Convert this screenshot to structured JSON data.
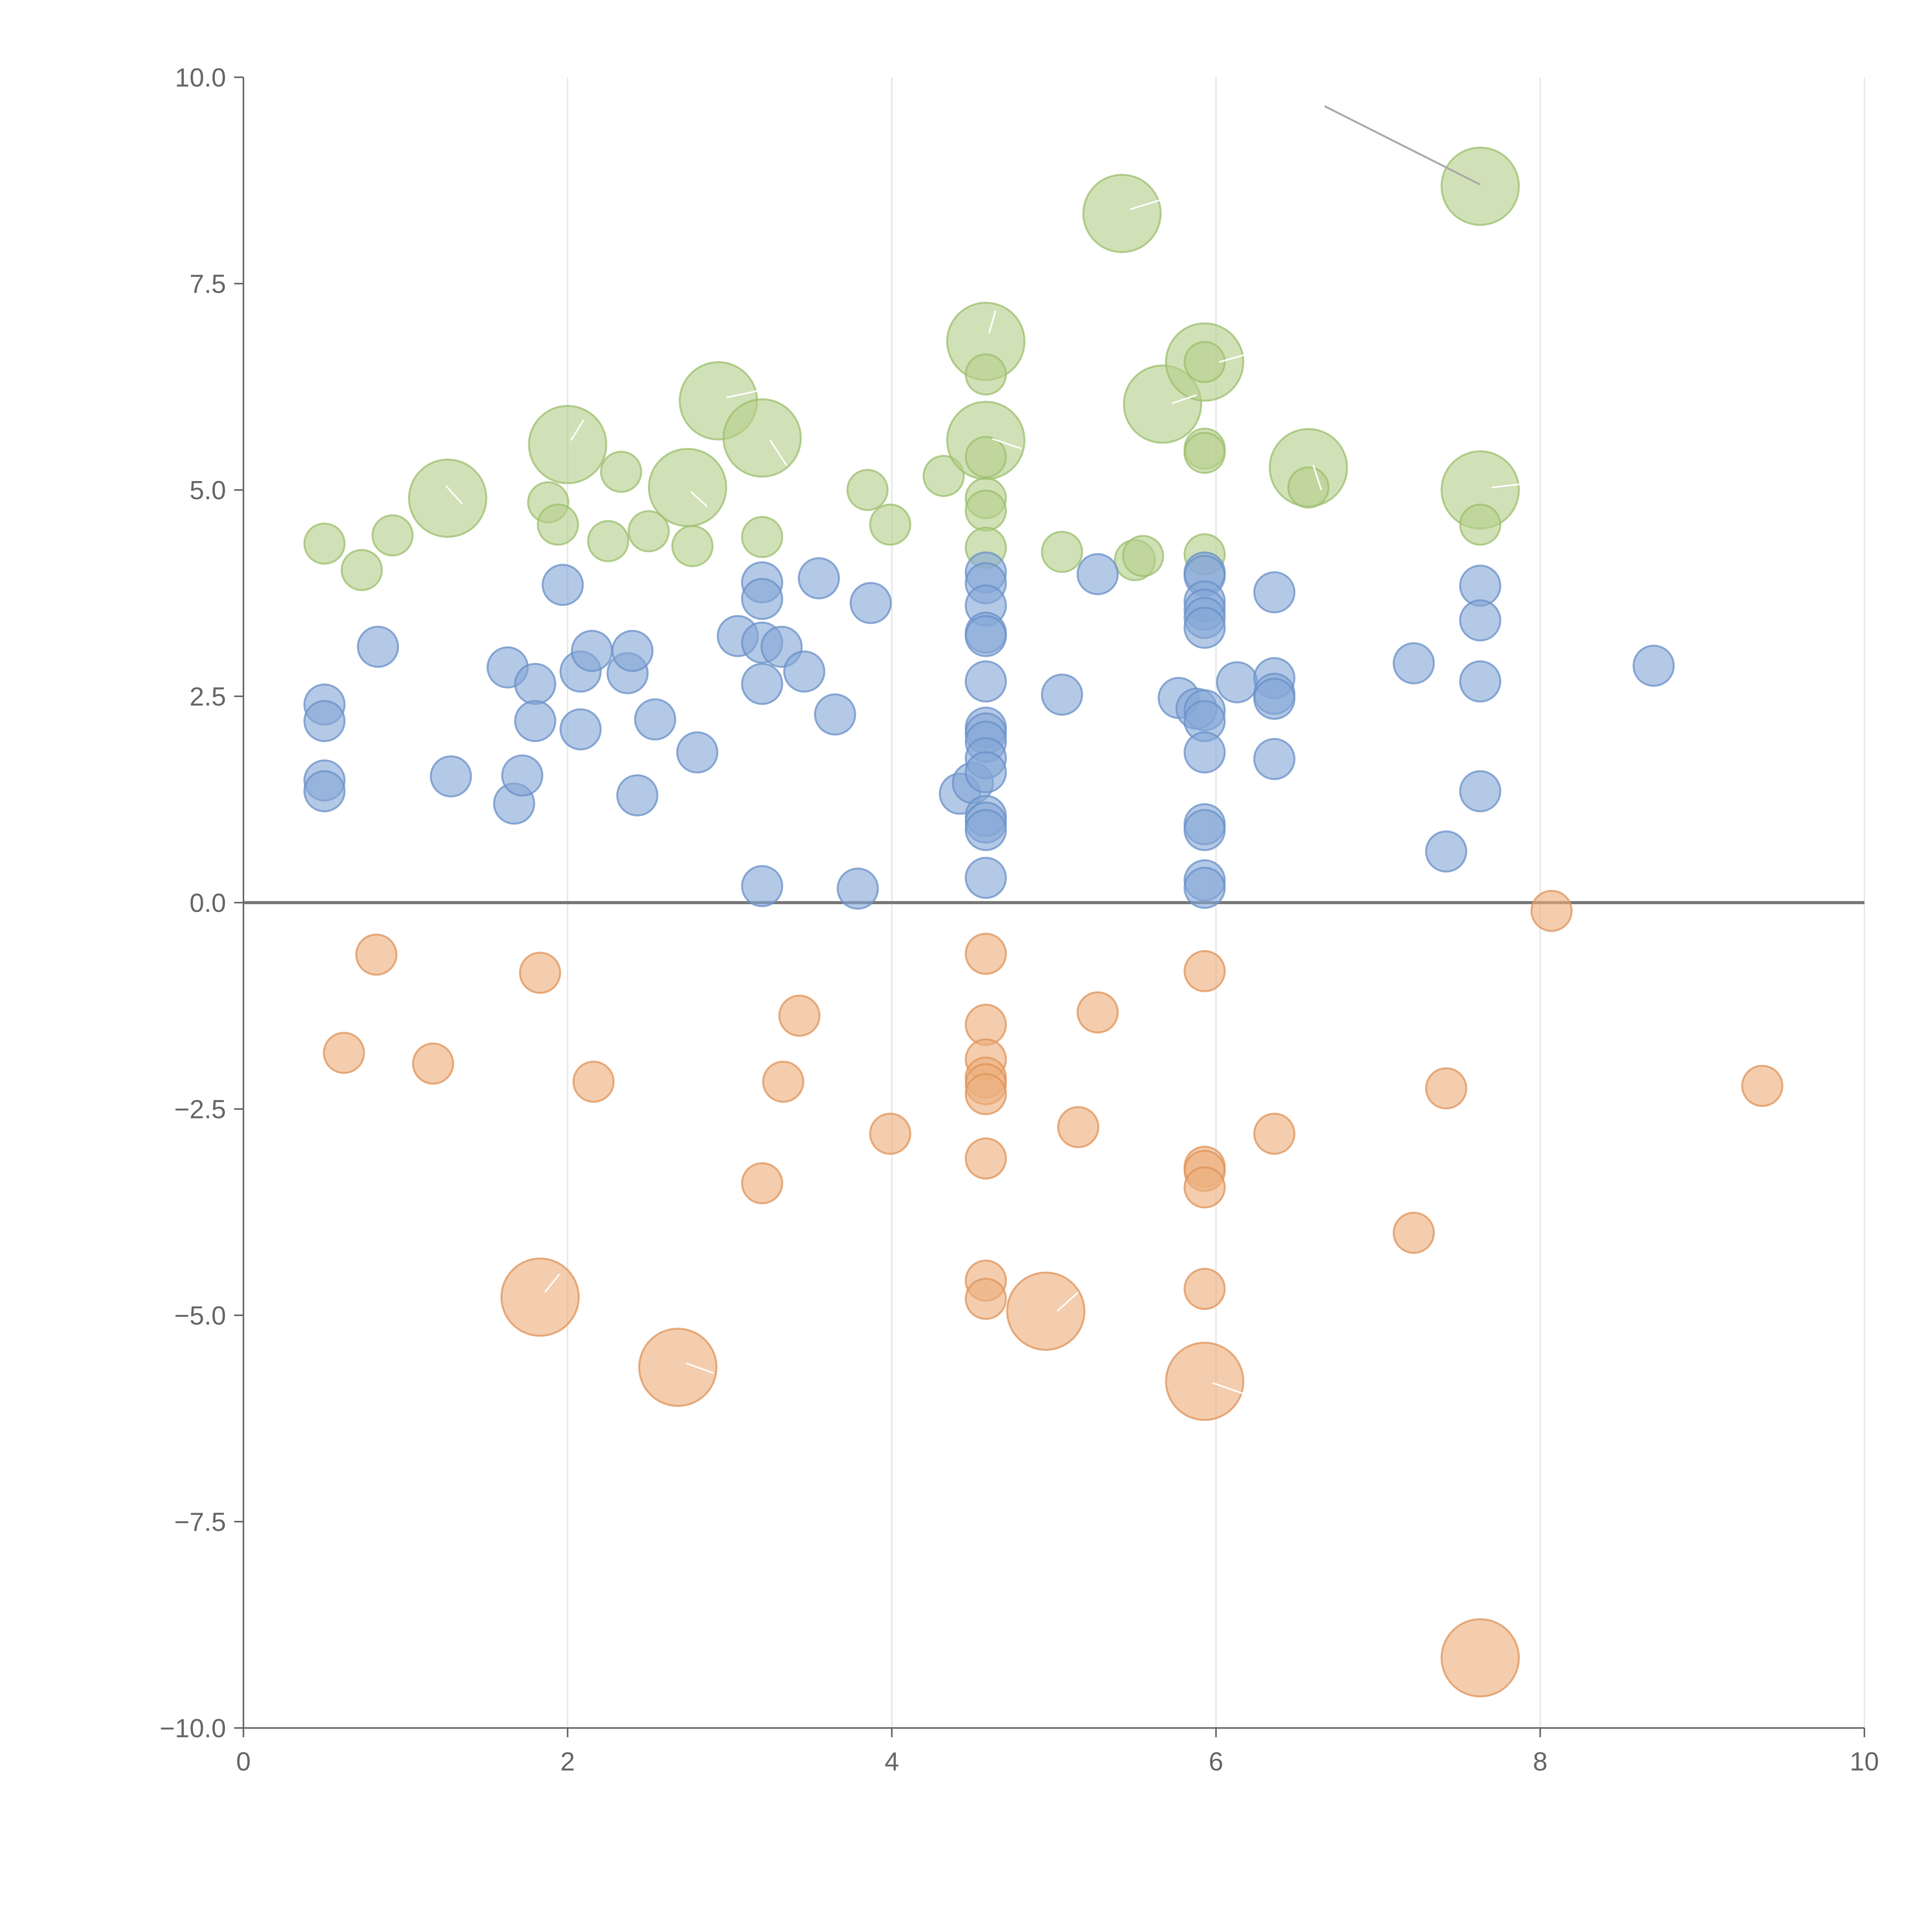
{
  "chart_data": {
    "type": "scatter",
    "subtype": "bubble",
    "title": "",
    "xlabel": "",
    "ylabel": "",
    "xlim": [
      0,
      10
    ],
    "ylim": [
      -10,
      10
    ],
    "x_ticks": [
      0,
      2,
      4,
      6,
      8,
      10
    ],
    "y_ticks": [
      -10,
      -7.5,
      -5,
      -2.5,
      0,
      2.5,
      5,
      7.5,
      10
    ],
    "x_tick_labels": [
      "0",
      "2",
      "4",
      "6",
      "8",
      "10"
    ],
    "y_tick_labels": [
      "−10.0",
      "−7.5",
      "−5.0",
      "−2.5",
      "0.0",
      "2.5",
      "5.0",
      "7.5",
      "10.0"
    ],
    "grid": "vertical only",
    "legend": "none",
    "reference_line": {
      "axis": "y",
      "value": 0
    },
    "colors": {
      "green": "#b5cf8a",
      "blue": "#86a8d6",
      "orange": "#ebae7d",
      "green_stroke": "#9cbf6e",
      "blue_stroke": "#6a90c8",
      "orange_stroke": "#e09358"
    },
    "series": [
      {
        "name": "green",
        "color": "#b5cf8a",
        "points": [
          {
            "x": 0.5,
            "y": 4.35,
            "size": 1
          },
          {
            "x": 0.73,
            "y": 4.03,
            "size": 1
          },
          {
            "x": 0.92,
            "y": 4.45,
            "size": 1
          },
          {
            "x": 1.26,
            "y": 4.9,
            "size": 3
          },
          {
            "x": 1.88,
            "y": 4.85,
            "size": 1
          },
          {
            "x": 1.94,
            "y": 4.58,
            "size": 1
          },
          {
            "x": 2.0,
            "y": 5.55,
            "size": 3
          },
          {
            "x": 2.25,
            "y": 4.38,
            "size": 1
          },
          {
            "x": 2.33,
            "y": 5.22,
            "size": 1
          },
          {
            "x": 2.5,
            "y": 4.5,
            "size": 1
          },
          {
            "x": 2.74,
            "y": 5.03,
            "size": 3
          },
          {
            "x": 2.77,
            "y": 4.32,
            "size": 1
          },
          {
            "x": 2.93,
            "y": 6.08,
            "size": 3
          },
          {
            "x": 3.2,
            "y": 4.43,
            "size": 1
          },
          {
            "x": 3.2,
            "y": 5.63,
            "size": 3
          },
          {
            "x": 3.85,
            "y": 5.0,
            "size": 1
          },
          {
            "x": 3.99,
            "y": 4.58,
            "size": 1
          },
          {
            "x": 4.32,
            "y": 5.17,
            "size": 1
          },
          {
            "x": 4.58,
            "y": 6.8,
            "size": 3
          },
          {
            "x": 4.58,
            "y": 6.4,
            "size": 1
          },
          {
            "x": 4.58,
            "y": 5.6,
            "size": 3
          },
          {
            "x": 4.58,
            "y": 5.4,
            "size": 1
          },
          {
            "x": 4.58,
            "y": 4.9,
            "size": 1
          },
          {
            "x": 4.58,
            "y": 4.75,
            "size": 1
          },
          {
            "x": 4.58,
            "y": 4.3,
            "size": 1
          },
          {
            "x": 5.05,
            "y": 4.25,
            "size": 1
          },
          {
            "x": 5.42,
            "y": 8.35,
            "size": 3
          },
          {
            "x": 5.5,
            "y": 4.15,
            "size": 1
          },
          {
            "x": 5.55,
            "y": 4.2,
            "size": 1
          },
          {
            "x": 5.67,
            "y": 6.04,
            "size": 3
          },
          {
            "x": 5.93,
            "y": 6.55,
            "size": 3
          },
          {
            "x": 5.93,
            "y": 6.55,
            "size": 1
          },
          {
            "x": 5.93,
            "y": 5.5,
            "size": 1
          },
          {
            "x": 5.93,
            "y": 5.45,
            "size": 1
          },
          {
            "x": 5.93,
            "y": 4.22,
            "size": 1
          },
          {
            "x": 6.57,
            "y": 5.27,
            "size": 3
          },
          {
            "x": 6.57,
            "y": 5.03,
            "size": 1
          },
          {
            "x": 7.63,
            "y": 8.68,
            "size": 3
          },
          {
            "x": 7.63,
            "y": 5.0,
            "size": 3
          },
          {
            "x": 7.63,
            "y": 4.58,
            "size": 1
          }
        ]
      },
      {
        "name": "blue",
        "color": "#86a8d6",
        "points": [
          {
            "x": 0.5,
            "y": 2.4,
            "size": 1
          },
          {
            "x": 0.5,
            "y": 2.2,
            "size": 1
          },
          {
            "x": 0.5,
            "y": 1.48,
            "size": 1
          },
          {
            "x": 0.5,
            "y": 1.35,
            "size": 1
          },
          {
            "x": 0.83,
            "y": 3.1,
            "size": 1
          },
          {
            "x": 1.28,
            "y": 1.53,
            "size": 1
          },
          {
            "x": 1.63,
            "y": 2.85,
            "size": 1
          },
          {
            "x": 1.67,
            "y": 1.2,
            "size": 1
          },
          {
            "x": 1.72,
            "y": 1.54,
            "size": 1
          },
          {
            "x": 1.8,
            "y": 2.65,
            "size": 1
          },
          {
            "x": 1.8,
            "y": 2.2,
            "size": 1
          },
          {
            "x": 1.97,
            "y": 3.85,
            "size": 1
          },
          {
            "x": 2.08,
            "y": 2.8,
            "size": 1
          },
          {
            "x": 2.08,
            "y": 2.1,
            "size": 1
          },
          {
            "x": 2.15,
            "y": 3.05,
            "size": 1
          },
          {
            "x": 2.37,
            "y": 2.78,
            "size": 1
          },
          {
            "x": 2.4,
            "y": 3.05,
            "size": 1
          },
          {
            "x": 2.43,
            "y": 1.3,
            "size": 1
          },
          {
            "x": 2.54,
            "y": 2.22,
            "size": 1
          },
          {
            "x": 2.8,
            "y": 1.82,
            "size": 1
          },
          {
            "x": 3.05,
            "y": 3.23,
            "size": 1
          },
          {
            "x": 3.2,
            "y": 3.88,
            "size": 1
          },
          {
            "x": 3.2,
            "y": 3.68,
            "size": 1
          },
          {
            "x": 3.2,
            "y": 3.15,
            "size": 1
          },
          {
            "x": 3.2,
            "y": 2.65,
            "size": 1
          },
          {
            "x": 3.2,
            "y": 0.2,
            "size": 1
          },
          {
            "x": 3.32,
            "y": 3.1,
            "size": 1
          },
          {
            "x": 3.46,
            "y": 2.8,
            "size": 1
          },
          {
            "x": 3.55,
            "y": 3.93,
            "size": 1
          },
          {
            "x": 3.65,
            "y": 2.28,
            "size": 1
          },
          {
            "x": 3.79,
            "y": 0.17,
            "size": 1
          },
          {
            "x": 3.87,
            "y": 3.63,
            "size": 1
          },
          {
            "x": 4.42,
            "y": 1.32,
            "size": 1
          },
          {
            "x": 4.5,
            "y": 1.45,
            "size": 1
          },
          {
            "x": 4.58,
            "y": 4.0,
            "size": 1
          },
          {
            "x": 4.58,
            "y": 3.87,
            "size": 1
          },
          {
            "x": 4.58,
            "y": 3.6,
            "size": 1
          },
          {
            "x": 4.58,
            "y": 3.27,
            "size": 1
          },
          {
            "x": 4.58,
            "y": 3.23,
            "size": 1
          },
          {
            "x": 4.58,
            "y": 2.68,
            "size": 1
          },
          {
            "x": 4.58,
            "y": 2.12,
            "size": 1
          },
          {
            "x": 4.58,
            "y": 2.05,
            "size": 1
          },
          {
            "x": 4.58,
            "y": 1.95,
            "size": 1
          },
          {
            "x": 4.58,
            "y": 1.75,
            "size": 1
          },
          {
            "x": 4.58,
            "y": 1.58,
            "size": 1
          },
          {
            "x": 4.58,
            "y": 1.05,
            "size": 1
          },
          {
            "x": 4.58,
            "y": 0.97,
            "size": 1
          },
          {
            "x": 4.58,
            "y": 0.88,
            "size": 1
          },
          {
            "x": 4.58,
            "y": 0.3,
            "size": 1
          },
          {
            "x": 5.05,
            "y": 2.52,
            "size": 1
          },
          {
            "x": 5.27,
            "y": 3.98,
            "size": 1
          },
          {
            "x": 5.77,
            "y": 2.48,
            "size": 1
          },
          {
            "x": 5.88,
            "y": 2.35,
            "size": 1
          },
          {
            "x": 5.93,
            "y": 4.0,
            "size": 1
          },
          {
            "x": 5.93,
            "y": 3.96,
            "size": 1
          },
          {
            "x": 5.93,
            "y": 3.65,
            "size": 1
          },
          {
            "x": 5.93,
            "y": 3.55,
            "size": 1
          },
          {
            "x": 5.93,
            "y": 3.45,
            "size": 1
          },
          {
            "x": 5.93,
            "y": 3.33,
            "size": 1
          },
          {
            "x": 5.93,
            "y": 2.33,
            "size": 1
          },
          {
            "x": 5.93,
            "y": 2.2,
            "size": 1
          },
          {
            "x": 5.93,
            "y": 1.82,
            "size": 1
          },
          {
            "x": 5.93,
            "y": 0.95,
            "size": 1
          },
          {
            "x": 5.93,
            "y": 0.88,
            "size": 1
          },
          {
            "x": 5.93,
            "y": 0.27,
            "size": 1
          },
          {
            "x": 5.93,
            "y": 0.18,
            "size": 1
          },
          {
            "x": 6.13,
            "y": 2.67,
            "size": 1
          },
          {
            "x": 6.36,
            "y": 3.76,
            "size": 1
          },
          {
            "x": 6.36,
            "y": 2.72,
            "size": 1
          },
          {
            "x": 6.36,
            "y": 2.53,
            "size": 1
          },
          {
            "x": 6.36,
            "y": 2.47,
            "size": 1
          },
          {
            "x": 6.36,
            "y": 1.74,
            "size": 1
          },
          {
            "x": 7.22,
            "y": 2.9,
            "size": 1
          },
          {
            "x": 7.42,
            "y": 0.62,
            "size": 1
          },
          {
            "x": 7.63,
            "y": 3.84,
            "size": 1
          },
          {
            "x": 7.63,
            "y": 3.42,
            "size": 1
          },
          {
            "x": 7.63,
            "y": 2.68,
            "size": 1
          },
          {
            "x": 7.63,
            "y": 1.35,
            "size": 1
          },
          {
            "x": 8.7,
            "y": 2.87,
            "size": 1
          }
        ]
      },
      {
        "name": "orange",
        "color": "#ebae7d",
        "points": [
          {
            "x": 0.62,
            "y": -1.82,
            "size": 1
          },
          {
            "x": 0.82,
            "y": -0.63,
            "size": 1
          },
          {
            "x": 1.17,
            "y": -1.95,
            "size": 1
          },
          {
            "x": 1.83,
            "y": -0.85,
            "size": 1
          },
          {
            "x": 1.83,
            "y": -4.78,
            "size": 3
          },
          {
            "x": 2.16,
            "y": -2.17,
            "size": 1
          },
          {
            "x": 2.68,
            "y": -5.63,
            "size": 3
          },
          {
            "x": 3.2,
            "y": -3.4,
            "size": 1
          },
          {
            "x": 3.33,
            "y": -2.17,
            "size": 1
          },
          {
            "x": 3.43,
            "y": -1.37,
            "size": 1
          },
          {
            "x": 3.99,
            "y": -2.8,
            "size": 1
          },
          {
            "x": 4.58,
            "y": -0.62,
            "size": 1
          },
          {
            "x": 4.58,
            "y": -1.48,
            "size": 1
          },
          {
            "x": 4.58,
            "y": -1.9,
            "size": 1
          },
          {
            "x": 4.58,
            "y": -2.12,
            "size": 1
          },
          {
            "x": 4.58,
            "y": -2.2,
            "size": 1
          },
          {
            "x": 4.58,
            "y": -2.32,
            "size": 1
          },
          {
            "x": 4.58,
            "y": -3.1,
            "size": 1
          },
          {
            "x": 4.58,
            "y": -4.58,
            "size": 1
          },
          {
            "x": 4.58,
            "y": -4.8,
            "size": 1
          },
          {
            "x": 4.95,
            "y": -4.95,
            "size": 3
          },
          {
            "x": 5.15,
            "y": -2.72,
            "size": 1
          },
          {
            "x": 5.27,
            "y": -1.33,
            "size": 1
          },
          {
            "x": 5.93,
            "y": -0.83,
            "size": 1
          },
          {
            "x": 5.93,
            "y": -3.2,
            "size": 1
          },
          {
            "x": 5.93,
            "y": -3.25,
            "size": 1
          },
          {
            "x": 5.93,
            "y": -3.45,
            "size": 1
          },
          {
            "x": 5.93,
            "y": -4.68,
            "size": 1
          },
          {
            "x": 5.93,
            "y": -5.8,
            "size": 3
          },
          {
            "x": 6.36,
            "y": -2.8,
            "size": 1
          },
          {
            "x": 7.22,
            "y": -4.0,
            "size": 1
          },
          {
            "x": 7.42,
            "y": -2.25,
            "size": 1
          },
          {
            "x": 7.63,
            "y": -9.15,
            "size": 3
          },
          {
            "x": 8.07,
            "y": -0.1,
            "size": 1
          },
          {
            "x": 9.37,
            "y": -2.22,
            "size": 1
          }
        ]
      }
    ],
    "leader_lines": [
      {
        "from": [
          6.67,
          9.65
        ],
        "to": [
          7.63,
          8.7
        ],
        "color": "#aaaaaa"
      },
      {
        "from": [
          5.47,
          8.4
        ],
        "to": [
          5.67,
          8.52
        ],
        "color": "#ffffff"
      },
      {
        "from": [
          4.6,
          6.9
        ],
        "to": [
          4.64,
          7.17
        ],
        "color": "#ffffff"
      },
      {
        "from": [
          6.02,
          6.55
        ],
        "to": [
          6.2,
          6.65
        ],
        "color": "#ffffff"
      },
      {
        "from": [
          5.73,
          6.05
        ],
        "to": [
          5.88,
          6.15
        ],
        "color": "#ffffff"
      },
      {
        "from": [
          2.98,
          6.12
        ],
        "to": [
          3.17,
          6.2
        ],
        "color": "#ffffff"
      },
      {
        "from": [
          2.02,
          5.6
        ],
        "to": [
          2.1,
          5.85
        ],
        "color": "#ffffff"
      },
      {
        "from": [
          3.25,
          5.6
        ],
        "to": [
          3.35,
          5.3
        ],
        "color": "#ffffff"
      },
      {
        "from": [
          4.62,
          5.62
        ],
        "to": [
          4.8,
          5.5
        ],
        "color": "#ffffff"
      },
      {
        "from": [
          1.25,
          5.05
        ],
        "to": [
          1.35,
          4.83
        ],
        "color": "#ffffff"
      },
      {
        "from": [
          2.76,
          4.98
        ],
        "to": [
          2.86,
          4.8
        ],
        "color": "#ffffff"
      },
      {
        "from": [
          6.6,
          5.3
        ],
        "to": [
          6.65,
          5.0
        ],
        "color": "#ffffff"
      },
      {
        "from": [
          7.7,
          5.03
        ],
        "to": [
          7.88,
          5.07
        ],
        "color": "#ffffff"
      },
      {
        "from": [
          1.86,
          -4.72
        ],
        "to": [
          1.95,
          -4.5
        ],
        "color": "#ffffff"
      },
      {
        "from": [
          2.73,
          -5.58
        ],
        "to": [
          2.9,
          -5.7
        ],
        "color": "#ffffff"
      },
      {
        "from": [
          5.02,
          -4.95
        ],
        "to": [
          5.15,
          -4.72
        ],
        "color": "#ffffff"
      },
      {
        "from": [
          5.98,
          -5.82
        ],
        "to": [
          6.17,
          -5.95
        ],
        "color": "#ffffff"
      }
    ]
  }
}
